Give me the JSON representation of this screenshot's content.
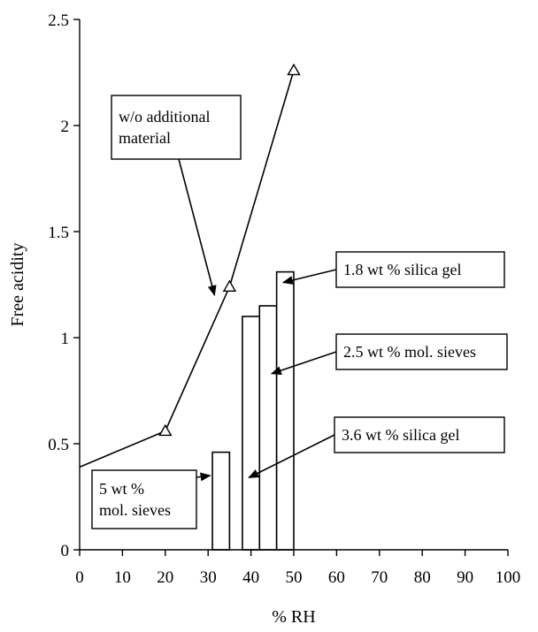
{
  "chart_data": {
    "type": "bar",
    "xlabel": "% RH",
    "ylabel": "Free acidity",
    "xlim": [
      0,
      100
    ],
    "ylim": [
      0,
      2.5
    ],
    "x_ticks": [
      0,
      10,
      20,
      30,
      40,
      50,
      60,
      70,
      80,
      90,
      100
    ],
    "y_ticks": [
      0,
      0.5,
      1,
      1.5,
      2,
      2.5
    ],
    "y_tick_labels": [
      "0",
      "0.5",
      "1",
      "1.5",
      "2",
      "2.5"
    ],
    "grid": false,
    "series": [
      {
        "type": "line",
        "marker": "triangle",
        "points": [
          {
            "x": 0,
            "y": 0.39
          },
          {
            "x": 20,
            "y": 0.56
          },
          {
            "x": 35,
            "y": 1.24
          },
          {
            "x": 50,
            "y": 2.26
          }
        ]
      },
      {
        "type": "bar",
        "bars": [
          {
            "x_start": 31,
            "x_end": 35,
            "y": 0.46
          },
          {
            "x_start": 38,
            "x_end": 42,
            "y": 1.1
          },
          {
            "x_start": 42,
            "x_end": 46,
            "y": 1.15
          },
          {
            "x_start": 46,
            "x_end": 50,
            "y": 1.31
          }
        ]
      }
    ],
    "annotations": [
      {
        "lines": [
          "w/o additional",
          "material"
        ],
        "arrow_to": {
          "x": 31.5,
          "y": 1.2
        }
      },
      {
        "lines": [
          "1.8 wt % silica gel"
        ],
        "arrow_to": {
          "x": 47.5,
          "y": 1.26
        }
      },
      {
        "lines": [
          "2.5 wt % mol. sieves"
        ],
        "arrow_to": {
          "x": 44.8,
          "y": 0.83
        }
      },
      {
        "lines": [
          "3.6 wt % silica gel"
        ],
        "arrow_to": {
          "x": 39.5,
          "y": 0.34
        }
      },
      {
        "lines": [
          "5 wt %",
          "mol. sieves"
        ],
        "arrow_to": {
          "x": 30.5,
          "y": 0.35
        }
      }
    ]
  }
}
